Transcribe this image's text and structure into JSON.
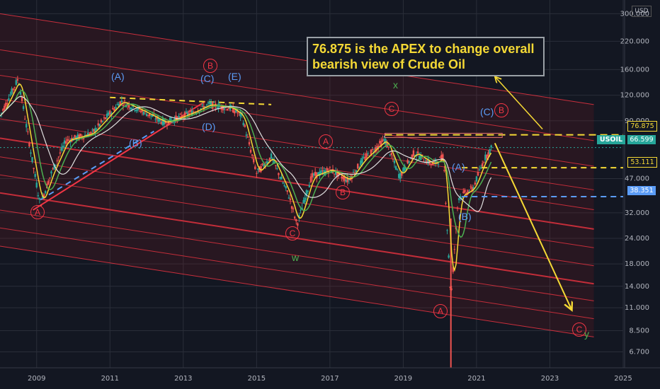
{
  "header": {
    "currency": "USD"
  },
  "note": {
    "line1": "76.875 is the APEX to change overall",
    "line2": "bearish view of Crude Oil"
  },
  "price_tags": {
    "apex": "76.875",
    "symbol": "USOIL",
    "last": "66.599",
    "mid": "53.111",
    "low": "38.351"
  },
  "wave_labels": {
    "A_2009": "A",
    "B_top": "B",
    "A_2015": "A",
    "B_2016": "B",
    "C_2016": "C",
    "C_2018": "C",
    "A_2020": "A",
    "B_2021": "B",
    "C_future": "C",
    "blue_A_2011": "(A)",
    "blue_B_2011": "(B)",
    "blue_C_2013": "(C)",
    "blue_D_2013": "(D)",
    "blue_E_2014": "(E)",
    "blue_A_2020": "(A)",
    "blue_B_2020": "(B)",
    "blue_C_2021": "(C)",
    "green_x": "x",
    "green_w": "w",
    "green_y": "y"
  },
  "colors": {
    "background": "#131722",
    "grid": "#2a2e39",
    "candle_up": "#26a69a",
    "candle_down": "#ef5350",
    "channel": "#f23645",
    "ma_short": "#f5d935",
    "ma_mid": "#4caf50",
    "ma_long": "#e0e0e0",
    "dash_yellow": "#f5d935",
    "dash_blue": "#5b9cf6"
  },
  "chart_data": {
    "type": "line",
    "title": "",
    "xlabel": "",
    "ylabel": "",
    "scale": "log",
    "x_ticks": [
      "2009",
      "2011",
      "2013",
      "2015",
      "2017",
      "2019",
      "2021",
      "2023",
      "2025"
    ],
    "y_ticks": [
      "6.700",
      "8.500",
      "11.000",
      "14.000",
      "18.000",
      "24.000",
      "32.000",
      "47.000",
      "90.000",
      "120.000",
      "160.000",
      "220.000",
      "300.000"
    ],
    "xlim": [
      2008.0,
      2025.0
    ],
    "ylim": [
      5.6,
      350
    ],
    "series": [
      {
        "x": [
          2008.0,
          2008.5,
          2008.9,
          2009.1,
          2009.4,
          2009.8,
          2010.5,
          2011.3,
          2011.9,
          2012.5,
          2013.2,
          2013.7,
          2014.3,
          2014.6,
          2015.0,
          2015.4,
          2015.9,
          2016.1,
          2016.5,
          2017.0,
          2017.5,
          2017.9,
          2018.5,
          2018.9,
          2019.3,
          2019.8,
          2020.1,
          2020.3,
          2020.5,
          2020.9,
          2021.2,
          2021.4
        ],
        "y": [
          95,
          145,
          55,
          35,
          50,
          72,
          78,
          112,
          100,
          88,
          98,
          108,
          104,
          95,
          50,
          60,
          38,
          28,
          48,
          52,
          46,
          58,
          73,
          48,
          63,
          55,
          60,
          12,
          38,
          42,
          58,
          66
        ]
      }
    ],
    "key_levels": [
      76.875,
      66.599,
      53.111,
      38.351
    ]
  }
}
